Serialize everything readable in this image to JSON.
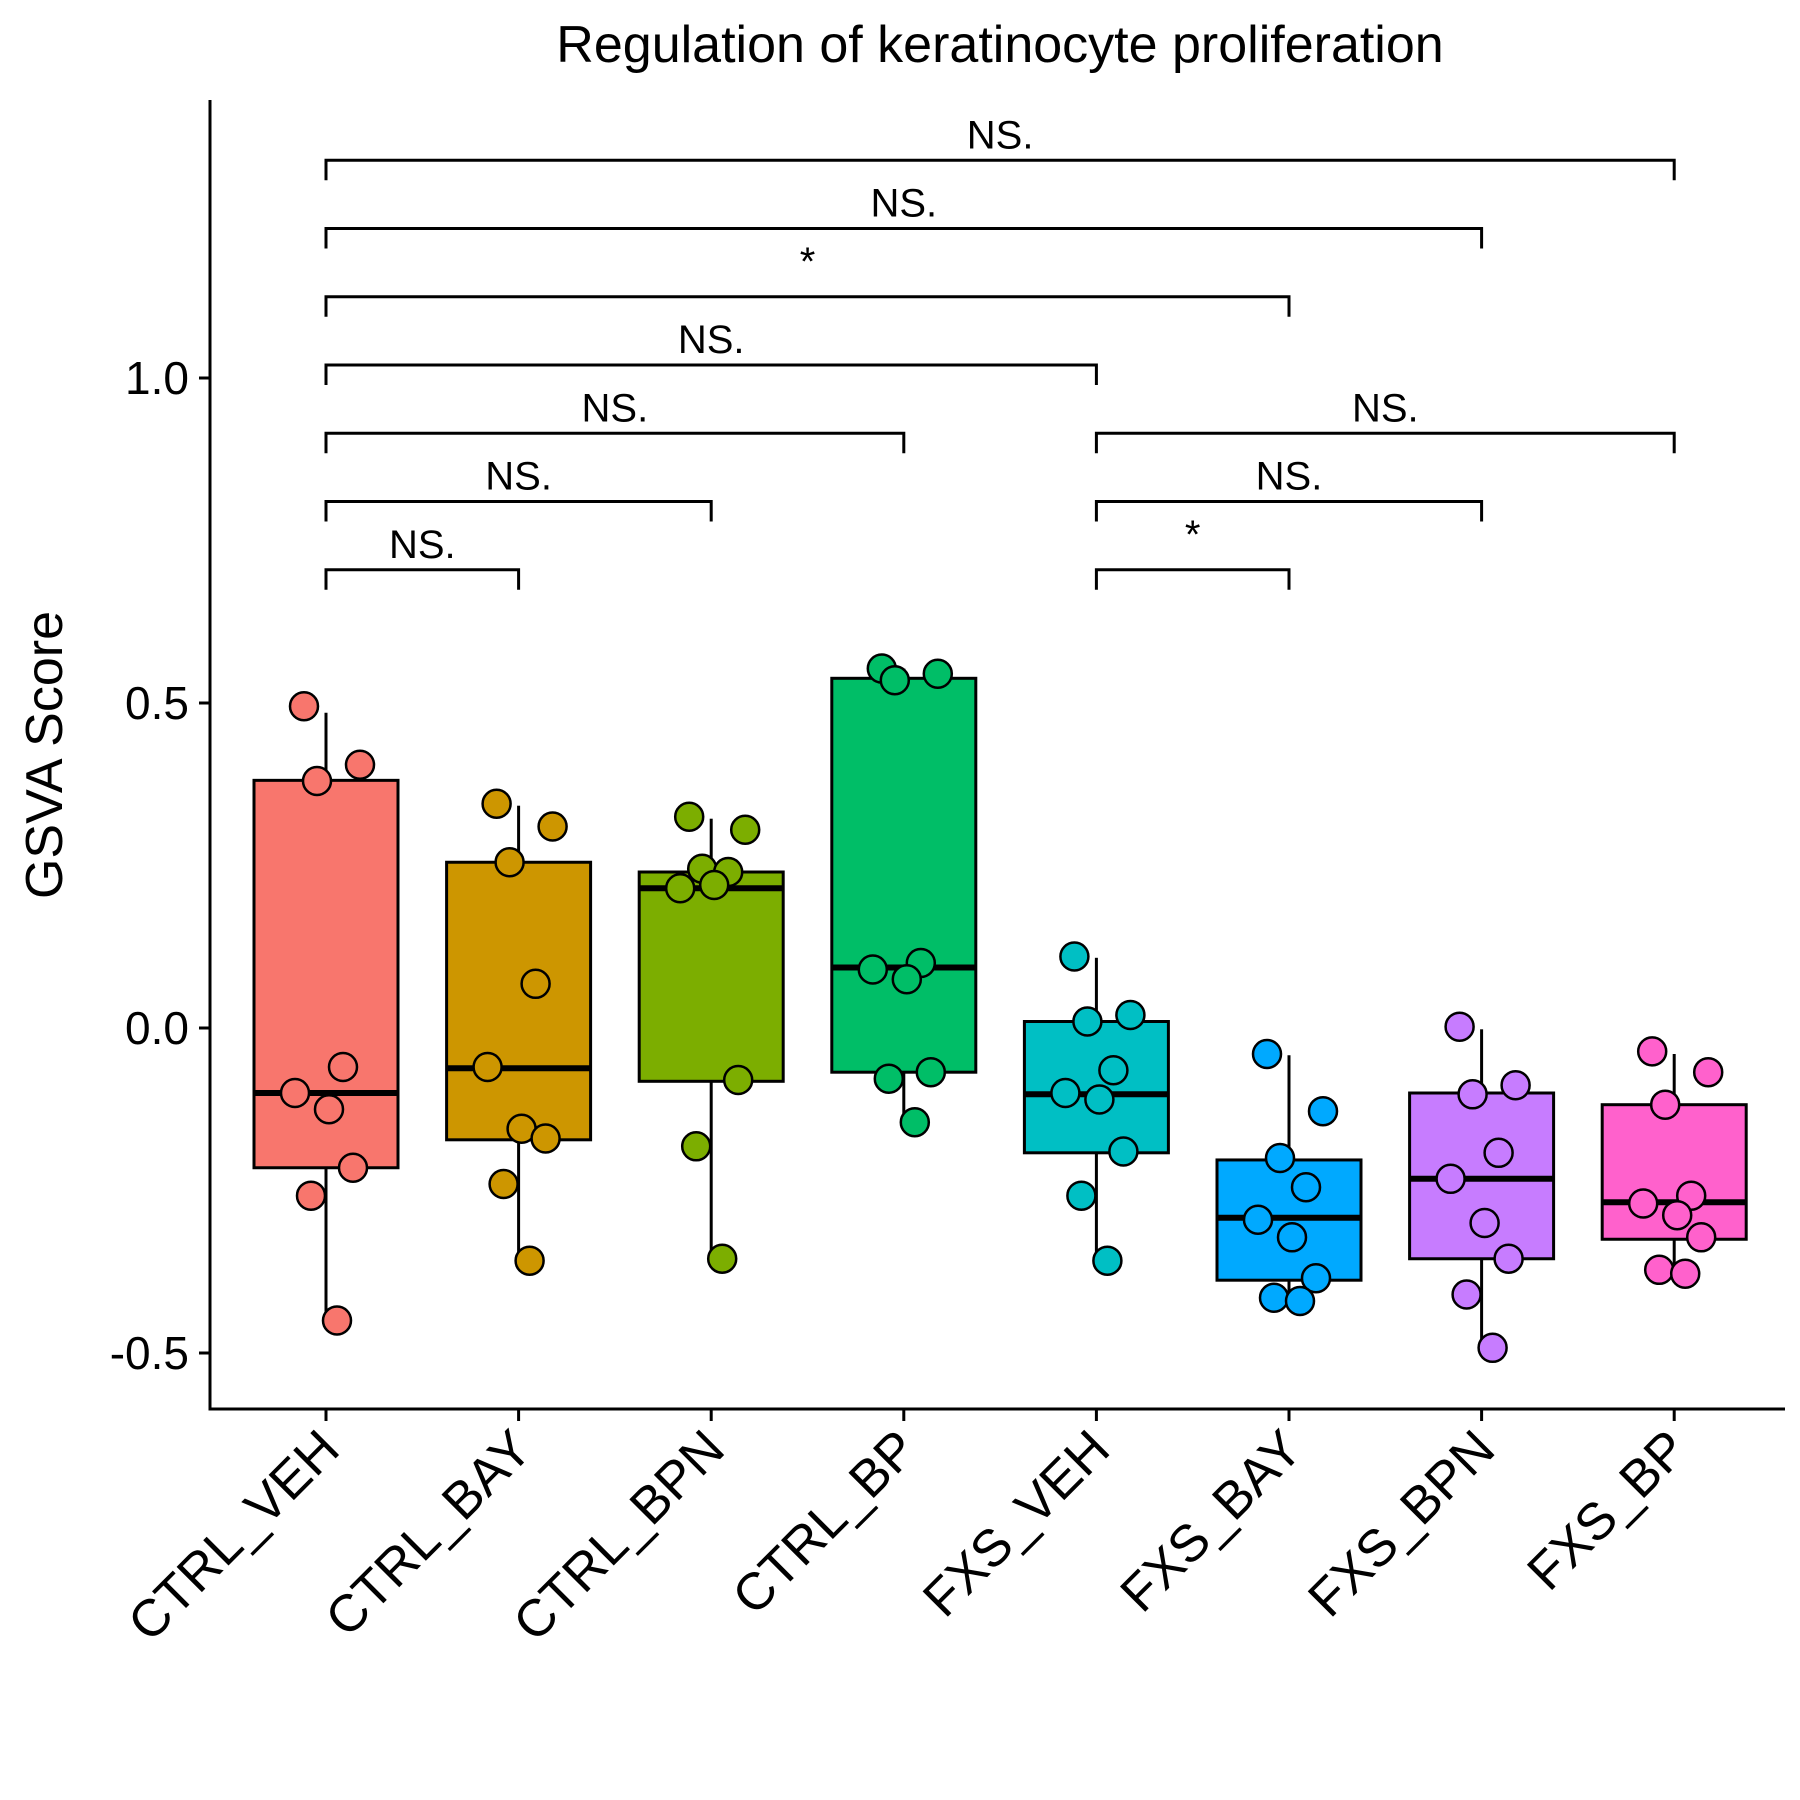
{
  "chart_data": {
    "type": "box",
    "title": "Regulation of keratinocyte proliferation",
    "xlabel": "",
    "ylabel": "GSVA Score",
    "ylim": [
      -0.58,
      1.43
    ],
    "y_ticks": [
      -0.5,
      0.0,
      0.5,
      1.0
    ],
    "y_tick_labels": [
      "-0.5",
      "0.0",
      "0.5",
      "1.0"
    ],
    "grid": false,
    "legend": "none",
    "groups": [
      {
        "name": "CTRL_VEH",
        "color": "#F8766D",
        "q1": -0.215,
        "median": -0.1,
        "q3": 0.381,
        "whisker_low": -0.447,
        "whisker_high": 0.485,
        "points": [
          0.495,
          0.405,
          0.38,
          -0.06,
          -0.1,
          -0.125,
          -0.215,
          -0.258,
          -0.45
        ]
      },
      {
        "name": "CTRL_BAY",
        "color": "#CD9600",
        "q1": -0.172,
        "median": -0.062,
        "q3": 0.255,
        "whisker_low": -0.355,
        "whisker_high": 0.342,
        "points": [
          0.345,
          0.31,
          0.255,
          0.068,
          -0.06,
          -0.155,
          -0.17,
          -0.24,
          -0.358
        ]
      },
      {
        "name": "CTRL_BPN",
        "color": "#7CAE00",
        "q1": -0.082,
        "median": 0.215,
        "q3": 0.24,
        "whisker_low": -0.355,
        "whisker_high": 0.322,
        "points": [
          0.325,
          0.305,
          0.245,
          0.24,
          0.215,
          0.22,
          -0.08,
          -0.182,
          -0.355
        ]
      },
      {
        "name": "CTRL_BP",
        "color": "#00BE67",
        "q1": -0.068,
        "median": 0.093,
        "q3": 0.538,
        "whisker_low": -0.14,
        "whisker_high": 0.553,
        "points": [
          0.553,
          0.545,
          0.535,
          0.1,
          0.09,
          0.075,
          -0.068,
          -0.078,
          -0.145
        ]
      },
      {
        "name": "FXS_VEH",
        "color": "#00BFC4",
        "q1": -0.192,
        "median": -0.102,
        "q3": 0.01,
        "whisker_low": -0.355,
        "whisker_high": 0.108,
        "points": [
          0.11,
          0.02,
          0.01,
          -0.065,
          -0.1,
          -0.11,
          -0.19,
          -0.258,
          -0.358
        ]
      },
      {
        "name": "FXS_BAY",
        "color": "#00A9FF",
        "q1": -0.388,
        "median": -0.292,
        "q3": -0.203,
        "whisker_low": -0.42,
        "whisker_high": -0.042,
        "points": [
          -0.04,
          -0.128,
          -0.2,
          -0.245,
          -0.295,
          -0.322,
          -0.385,
          -0.415,
          -0.42
        ]
      },
      {
        "name": "FXS_BPN",
        "color": "#C77CFF",
        "q1": -0.355,
        "median": -0.232,
        "q3": -0.1,
        "whisker_low": -0.49,
        "whisker_high": -0.002,
        "points": [
          0.002,
          -0.088,
          -0.102,
          -0.192,
          -0.232,
          -0.3,
          -0.355,
          -0.41,
          -0.492
        ]
      },
      {
        "name": "FXS_BP",
        "color": "#FF61CC",
        "q1": -0.325,
        "median": -0.268,
        "q3": -0.118,
        "whisker_low": -0.375,
        "whisker_high": -0.04,
        "points": [
          -0.036,
          -0.068,
          -0.118,
          -0.258,
          -0.27,
          -0.288,
          -0.322,
          -0.372,
          -0.378
        ]
      }
    ],
    "comparisons": [
      {
        "from": "CTRL_VEH",
        "to": "CTRL_BAY",
        "label": "NS.",
        "y": 0.705
      },
      {
        "from": "CTRL_VEH",
        "to": "CTRL_BPN",
        "label": "NS.",
        "y": 0.81
      },
      {
        "from": "CTRL_VEH",
        "to": "CTRL_BP",
        "label": "NS.",
        "y": 0.915
      },
      {
        "from": "CTRL_VEH",
        "to": "FXS_VEH",
        "label": "NS.",
        "y": 1.02
      },
      {
        "from": "CTRL_VEH",
        "to": "FXS_BAY",
        "label": "*",
        "y": 1.125
      },
      {
        "from": "CTRL_VEH",
        "to": "FXS_BPN",
        "label": "NS.",
        "y": 1.23
      },
      {
        "from": "CTRL_VEH",
        "to": "FXS_BP",
        "label": "NS.",
        "y": 1.335
      },
      {
        "from": "FXS_VEH",
        "to": "FXS_BAY",
        "label": "*",
        "y": 0.705
      },
      {
        "from": "FXS_VEH",
        "to": "FXS_BPN",
        "label": "NS.",
        "y": 0.81
      },
      {
        "from": "FXS_VEH",
        "to": "FXS_BP",
        "label": "NS.",
        "y": 0.915
      }
    ]
  }
}
